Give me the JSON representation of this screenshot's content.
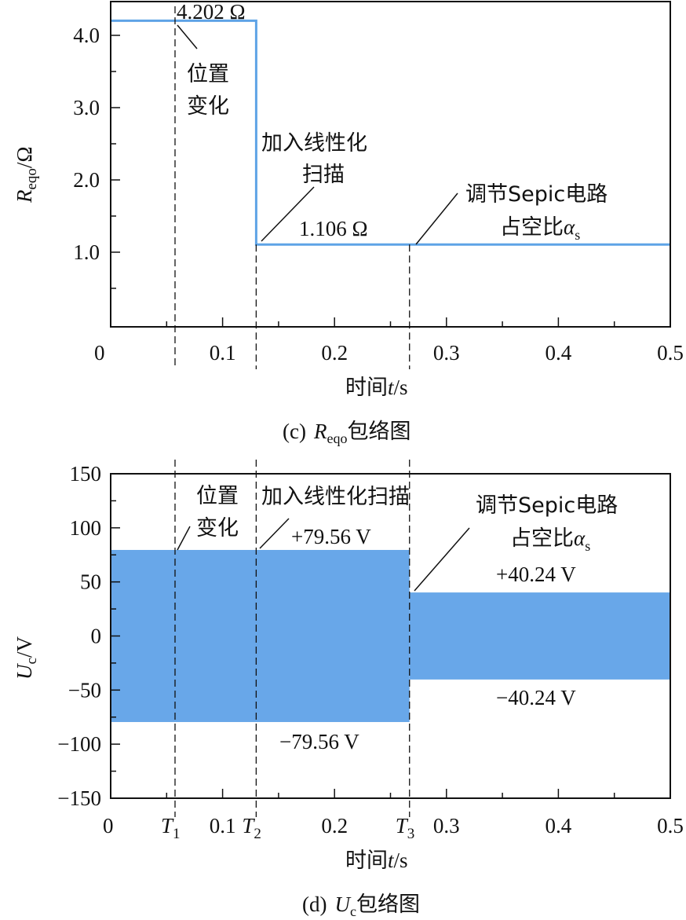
{
  "colors": {
    "line": "#5ea3e6",
    "fill": "#68a7e9",
    "axis": "#111111"
  },
  "chart_data": [
    {
      "type": "line",
      "title": "(c) Reqo包络图",
      "caption_prefix": "(c)",
      "caption_var": "R",
      "caption_sub": "eqo",
      "caption_suffix": "包络图",
      "xlabel": "时间t/s",
      "xlabel_parts": [
        "时间",
        "t",
        "/s"
      ],
      "ylabel": "Reqo/Ω",
      "ylabel_parts": [
        "R",
        "eqo",
        "/Ω"
      ],
      "xlim": [
        0,
        0.5
      ],
      "ylim": [
        0,
        4.3
      ],
      "xticks": [
        "0",
        "0.1",
        "0.2",
        "0.3",
        "0.4",
        "0.5"
      ],
      "xtick_values": [
        0,
        0.1,
        0.2,
        0.3,
        0.4,
        0.5
      ],
      "yticks": [
        "1.0",
        "2.0",
        "3.0",
        "4.0"
      ],
      "ytick_values": [
        1,
        2,
        3,
        4
      ],
      "series": [
        {
          "name": "Reqo",
          "x": [
            0,
            0.13,
            0.13,
            0.5
          ],
          "y": [
            4.202,
            4.202,
            1.106,
            1.106
          ]
        }
      ],
      "event_times": [
        0.0575,
        0.13,
        0.267
      ],
      "annotations": {
        "high_value": "4.202 Ω",
        "low_value": "1.106 Ω",
        "position_change": [
          "位置",
          "变化"
        ],
        "linear_scan": [
          "加入线性化",
          "扫描"
        ],
        "sepic_line1": "调节Sepic电路",
        "sepic_line2": "占空比",
        "sepic_alpha": "α",
        "sepic_sub": "s"
      }
    },
    {
      "type": "area",
      "title": "(d) Uc包络图",
      "caption_prefix": "(d)",
      "caption_var": "U",
      "caption_sub": "c",
      "caption_suffix": "包络图",
      "xlabel": "时间t/s",
      "xlabel_parts": [
        "时间",
        "t",
        "/s"
      ],
      "ylabel": "Uc/V",
      "ylabel_parts": [
        "U",
        "c",
        "/V"
      ],
      "xlim": [
        0,
        0.5
      ],
      "ylim": [
        -150,
        150
      ],
      "xticks": [
        "0",
        "0.1",
        "0.2",
        "0.3",
        "0.4",
        "0.5"
      ],
      "xtick_values": [
        0,
        0.1,
        0.2,
        0.3,
        0.4,
        0.5
      ],
      "event_labels": [
        "T",
        "T",
        "T"
      ],
      "event_subs": [
        "1",
        "2",
        "3"
      ],
      "event_times": [
        0.0575,
        0.13,
        0.267
      ],
      "yticks": [
        "−150",
        "−100",
        "−50",
        "0",
        "50",
        "100",
        "150"
      ],
      "ytick_values": [
        -150,
        -100,
        -50,
        0,
        50,
        100,
        150
      ],
      "series": [
        {
          "name": "Uc envelope",
          "segments": [
            {
              "x": [
                0,
                0.267
              ],
              "upper": 79.56,
              "lower": -79.56
            },
            {
              "x": [
                0.267,
                0.5
              ],
              "upper": 40.24,
              "lower": -40.24
            }
          ]
        }
      ],
      "annotations": {
        "upper1": "+79.56 V",
        "lower1": "−79.56 V",
        "upper2": "+40.24 V",
        "lower2": "−40.24 V",
        "position_change": [
          "位置",
          "变化"
        ],
        "linear_scan": "加入线性化扫描",
        "sepic_line1": "调节Sepic电路",
        "sepic_line2": "占空比",
        "sepic_alpha": "α",
        "sepic_sub": "s"
      }
    }
  ]
}
